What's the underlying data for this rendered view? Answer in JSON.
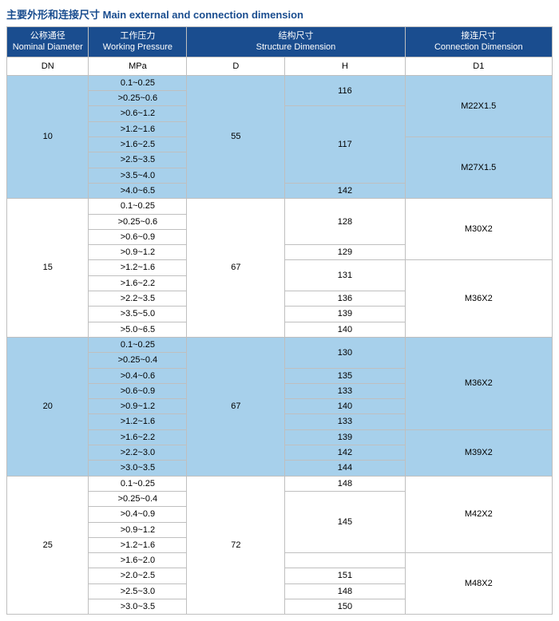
{
  "title": "主要外形和连接尺寸  Main external and connection  dimension",
  "headers": {
    "nominal": "公称通径\nNominal Diameter",
    "working": "工作压力\nWorking Pressure",
    "structure": "结构尺寸\nStructure Dimension",
    "connection": "接连尺寸\nConnection Dimension",
    "dn": "DN",
    "mpa": "MPa",
    "d": "D",
    "h": "H",
    "d1": "D1"
  },
  "dn": {
    "g1": "10",
    "g2": "15",
    "g3": "20",
    "g4": "25"
  },
  "d": {
    "g1": "55",
    "g2": "67",
    "g3": "67",
    "g4": "72"
  },
  "d1": {
    "g1a": "M22X1.5",
    "g1b": "M27X1.5",
    "g2a": "M30X2",
    "g2b": "M36X2",
    "g3a": "M36X2",
    "g3b": "M39X2",
    "g4a": "M42X2",
    "g4b": "M48X2"
  },
  "r": {
    "g1": {
      "p1": "0.1~0.25",
      "p2": ">0.25~0.6",
      "p3": ">0.6~1.2",
      "p4": ">1.2~1.6",
      "p5": ">1.6~2.5",
      "p6": ">2.5~3.5",
      "p7": ">3.5~4.0",
      "p8": ">4.0~6.5",
      "h1": "116",
      "h2": "117",
      "h3": "142"
    },
    "g2": {
      "p1": "0.1~0.25",
      "p2": ">0.25~0.6",
      "p3": ">0.6~0.9",
      "p4": ">0.9~1.2",
      "p5": ">1.2~1.6",
      "p6": ">1.6~2.2",
      "p7": ">2.2~3.5",
      "p8": ">3.5~5.0",
      "p9": ">5.0~6.5",
      "h1": "128",
      "h2": "129",
      "h3": "131",
      "h4": "136",
      "h5": "139",
      "h6": "140"
    },
    "g3": {
      "p1": "0.1~0.25",
      "p2": ">0.25~0.4",
      "p3": ">0.4~0.6",
      "p4": ">0.6~0.9",
      "p5": ">0.9~1.2",
      "p6": ">1.2~1.6",
      "p7": ">1.6~2.2",
      "p8": ">2.2~3.0",
      "p9": ">3.0~3.5",
      "h1": "130",
      "h2": "135",
      "h3": "133",
      "h4": "140",
      "h5": "133",
      "h6": "139",
      "h7": "142",
      "h8": "144"
    },
    "g4": {
      "p1": "0.1~0.25",
      "p2": ">0.25~0.4",
      "p3": ">0.4~0.9",
      "p4": ">0.9~1.2",
      "p5": ">1.2~1.6",
      "p6": ">1.6~2.0",
      "p7": ">2.0~2.5",
      "p8": ">2.5~3.0",
      "p9": ">3.0~3.5",
      "h1": "148",
      "h2": "145",
      "h3": "151",
      "h4": "148",
      "h5": "150"
    }
  }
}
